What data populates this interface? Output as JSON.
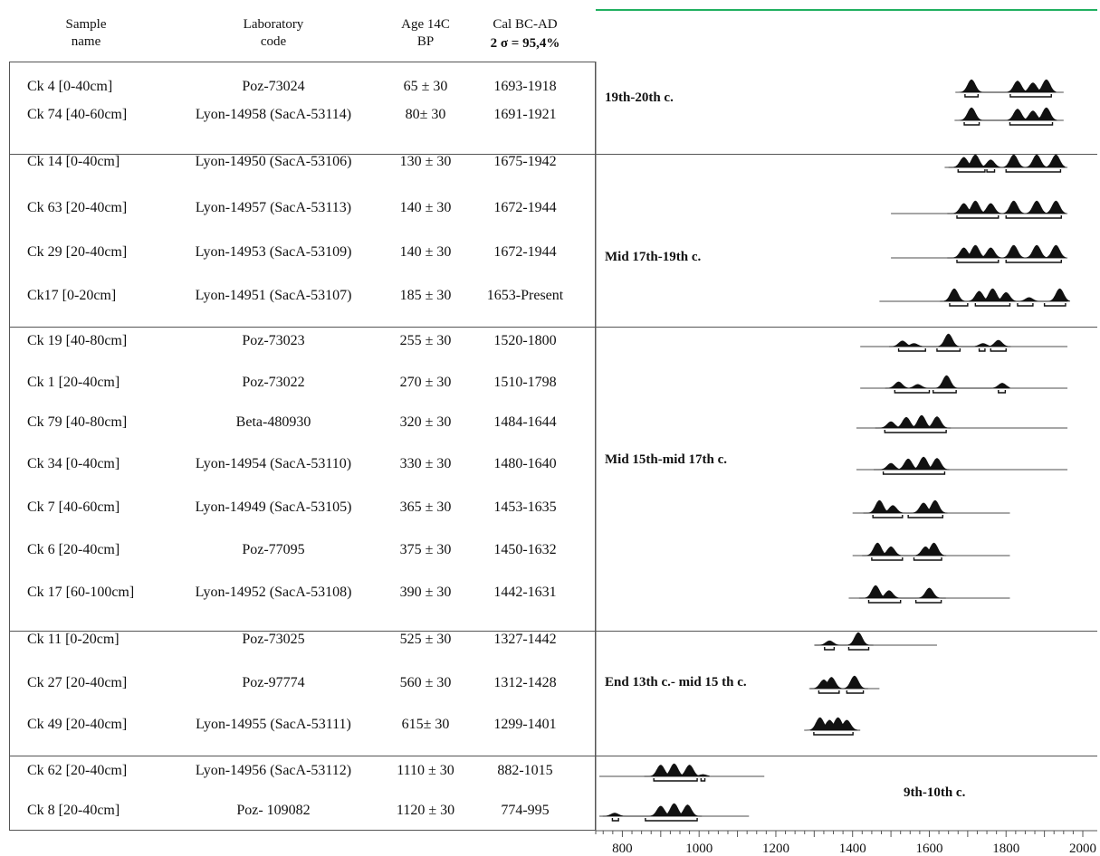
{
  "header": {
    "sample_name": "Sample\nname",
    "laboratory_code": "Laboratory\ncode",
    "age_14c": "Age 14C\nBP",
    "cal_bc_ad": "Cal BC-AD",
    "sigma": "2 σ = 95,4%"
  },
  "colors": {
    "border": "#555555",
    "curve": "#111111",
    "accent": "#20b060"
  },
  "chart_data": {
    "type": "table",
    "title": "",
    "xlabel": "",
    "ylabel": "",
    "xlim": [
      740,
      2000
    ],
    "x_ticks": [
      800,
      1000,
      1200,
      1400,
      1600,
      1800,
      2000
    ],
    "groups": [
      {
        "period": "19th-20th c.",
        "samples": [
          {
            "sample": "Ck 4 [0-40cm]",
            "lab": "Poz-73024",
            "age": "65 ± 30",
            "cal": "1693-1918",
            "range": [
              1680,
              1950
            ],
            "intervals": [
              [
                1693,
                1727
              ],
              [
                1811,
                1918
              ]
            ],
            "peaks": [
              [
                1710,
                1
              ],
              [
                1830,
                0.9
              ],
              [
                1870,
                0.75
              ],
              [
                1905,
                1
              ]
            ]
          },
          {
            "sample": "Ck 74 [40-60cm]",
            "lab": "Lyon-14958 (SacA-53114)",
            "age": "80± 30",
            "cal": "1691-1921",
            "range": [
              1680,
              1950
            ],
            "intervals": [
              [
                1691,
                1730
              ],
              [
                1810,
                1921
              ]
            ],
            "peaks": [
              [
                1710,
                1
              ],
              [
                1830,
                0.9
              ],
              [
                1870,
                0.75
              ],
              [
                1905,
                1
              ]
            ]
          }
        ]
      },
      {
        "period": "Mid 17th-19th c.",
        "samples": [
          {
            "sample": "Ck 14 [0-40cm]",
            "lab": "Lyon-14950 (SacA-53106)",
            "age": "130 ± 30",
            "cal": "1675-1942",
            "range": [
              1640,
              1960
            ],
            "intervals": [
              [
                1675,
                1745
              ],
              [
                1750,
                1770
              ],
              [
                1800,
                1942
              ]
            ],
            "peaks": [
              [
                1690,
                0.8
              ],
              [
                1720,
                1
              ],
              [
                1760,
                0.6
              ],
              [
                1820,
                1
              ],
              [
                1880,
                1
              ],
              [
                1930,
                1
              ]
            ]
          },
          {
            "sample": "Ck 63 [20-40cm]",
            "lab": "Lyon-14957 (SacA-53113)",
            "age": "140 ± 30",
            "cal": "1672-1944",
            "range": [
              1500,
              1960
            ],
            "intervals": [
              [
                1672,
                1780
              ],
              [
                1800,
                1944
              ]
            ],
            "peaks": [
              [
                1690,
                0.8
              ],
              [
                1720,
                1
              ],
              [
                1760,
                0.8
              ],
              [
                1820,
                1
              ],
              [
                1880,
                1
              ],
              [
                1930,
                1
              ]
            ]
          },
          {
            "sample": "Ck 29 [20-40cm]",
            "lab": "Lyon-14953 (SacA-53109)",
            "age": "140 ± 30",
            "cal": "1672-1944",
            "range": [
              1500,
              1960
            ],
            "intervals": [
              [
                1672,
                1780
              ],
              [
                1800,
                1944
              ]
            ],
            "peaks": [
              [
                1690,
                0.8
              ],
              [
                1720,
                1
              ],
              [
                1760,
                0.8
              ],
              [
                1820,
                1
              ],
              [
                1880,
                1
              ],
              [
                1930,
                1
              ]
            ]
          },
          {
            "sample": "Ck17 [0-20cm]",
            "lab": "Lyon-14951 (SacA-53107)",
            "age": "185 ± 30",
            "cal": "1653-Present",
            "range": [
              1470,
              1960
            ],
            "intervals": [
              [
                1653,
                1700
              ],
              [
                1720,
                1810
              ],
              [
                1830,
                1870
              ],
              [
                1900,
                1955
              ]
            ],
            "peaks": [
              [
                1665,
                1
              ],
              [
                1730,
                0.8
              ],
              [
                1765,
                1
              ],
              [
                1800,
                0.7
              ],
              [
                1860,
                0.3
              ],
              [
                1940,
                1
              ]
            ]
          }
        ]
      },
      {
        "period": "Mid 15th-mid 17th c.",
        "samples": [
          {
            "sample": "Ck 19 [40-80cm]",
            "lab": "Poz-73023",
            "age": "255 ± 30",
            "cal": "1520-1800",
            "range": [
              1420,
              1960
            ],
            "intervals": [
              [
                1520,
                1590
              ],
              [
                1620,
                1680
              ],
              [
                1730,
                1745
              ],
              [
                1760,
                1800
              ]
            ],
            "peaks": [
              [
                1530,
                0.45
              ],
              [
                1560,
                0.25
              ],
              [
                1650,
                1
              ],
              [
                1740,
                0.25
              ],
              [
                1780,
                0.5
              ]
            ]
          },
          {
            "sample": "Ck 1 [20-40cm]",
            "lab": "Poz-73022",
            "age": "270 ± 30",
            "cal": "1510-1798",
            "range": [
              1420,
              1960
            ],
            "intervals": [
              [
                1510,
                1600
              ],
              [
                1610,
                1670
              ],
              [
                1780,
                1798
              ]
            ],
            "peaks": [
              [
                1520,
                0.5
              ],
              [
                1570,
                0.3
              ],
              [
                1645,
                1
              ],
              [
                1790,
                0.4
              ]
            ]
          },
          {
            "sample": "Ck 79 [40-80cm]",
            "lab": "Beta-480930",
            "age": "320 ± 30",
            "cal": "1484-1644",
            "range": [
              1410,
              1960
            ],
            "intervals": [
              [
                1484,
                1644
              ]
            ],
            "peaks": [
              [
                1500,
                0.5
              ],
              [
                1540,
                0.85
              ],
              [
                1580,
                1
              ],
              [
                1620,
                0.9
              ]
            ]
          },
          {
            "sample": "Ck 34 [0-40cm]",
            "lab": "Lyon-14954 (SacA-53110)",
            "age": "330 ± 30",
            "cal": "1480-1640",
            "range": [
              1410,
              1960
            ],
            "intervals": [
              [
                1480,
                1640
              ]
            ],
            "peaks": [
              [
                1500,
                0.5
              ],
              [
                1545,
                0.85
              ],
              [
                1585,
                1
              ],
              [
                1620,
                0.9
              ]
            ]
          },
          {
            "sample": "Ck 7 [40-60cm]",
            "lab": "Lyon-14949 (SacA-53105)",
            "age": "365 ± 30",
            "cal": "1453-1635",
            "range": [
              1400,
              1810
            ],
            "intervals": [
              [
                1453,
                1530
              ],
              [
                1545,
                1635
              ]
            ],
            "peaks": [
              [
                1470,
                1
              ],
              [
                1505,
                0.6
              ],
              [
                1585,
                0.8
              ],
              [
                1615,
                1
              ]
            ]
          },
          {
            "sample": "Ck 6 [20-40cm]",
            "lab": "Poz-77095",
            "age": "375 ± 30",
            "cal": "1450-1632",
            "range": [
              1400,
              1810
            ],
            "intervals": [
              [
                1450,
                1530
              ],
              [
                1560,
                1632
              ]
            ],
            "peaks": [
              [
                1465,
                1
              ],
              [
                1500,
                0.7
              ],
              [
                1590,
                0.7
              ],
              [
                1612,
                1
              ]
            ]
          },
          {
            "sample": "Ck 17 [60-100cm]",
            "lab": "Lyon-14952 (SacA-53108)",
            "age": "390 ± 30",
            "cal": "1442-1631",
            "range": [
              1390,
              1810
            ],
            "intervals": [
              [
                1442,
                1525
              ],
              [
                1565,
                1631
              ]
            ],
            "peaks": [
              [
                1460,
                1
              ],
              [
                1495,
                0.6
              ],
              [
                1600,
                0.8
              ]
            ]
          }
        ]
      },
      {
        "period": "End 13th c.- mid 15 th c.",
        "samples": [
          {
            "sample": "Ck 11 [0-20cm]",
            "lab": "Poz-73025",
            "age": "525 ± 30",
            "cal": "1327-1442",
            "range": [
              1300,
              1620
            ],
            "intervals": [
              [
                1327,
                1352
              ],
              [
                1390,
                1442
              ]
            ],
            "peaks": [
              [
                1340,
                0.35
              ],
              [
                1415,
                1
              ]
            ]
          },
          {
            "sample": "Ck 27 [20-40cm]",
            "lab": "Poz-97774",
            "age": "560 ± 30",
            "cal": "1312-1428",
            "range": [
              1290,
              1470
            ],
            "intervals": [
              [
                1312,
                1365
              ],
              [
                1385,
                1428
              ]
            ],
            "peaks": [
              [
                1325,
                0.7
              ],
              [
                1345,
                0.9
              ],
              [
                1405,
                1
              ]
            ]
          },
          {
            "sample": "Ck 49 [20-40cm]",
            "lab": "Lyon-14955 (SacA-53111)",
            "age": "615± 30",
            "cal": "1299-1401",
            "range": [
              1290,
              1420
            ],
            "intervals": [
              [
                1299,
                1401
              ]
            ],
            "peaks": [
              [
                1315,
                1
              ],
              [
                1340,
                0.8
              ],
              [
                1362,
                1
              ],
              [
                1385,
                0.8
              ]
            ]
          }
        ]
      },
      {
        "period": "9th-10th c.",
        "samples": [
          {
            "sample": "Ck 62 [20-40cm]",
            "lab": "Lyon-14956 (SacA-53112)",
            "age": "1110 ± 30",
            "cal": "882-1015",
            "range": [
              740,
              1170
            ],
            "intervals": [
              [
                882,
                995
              ],
              [
                1005,
                1015
              ]
            ],
            "peaks": [
              [
                780,
                0.1
              ],
              [
                900,
                0.9
              ],
              [
                935,
                1
              ],
              [
                975,
                0.9
              ],
              [
                1010,
                0.15
              ]
            ]
          },
          {
            "sample": "Ck 8 [20-40cm]",
            "lab": "Poz- 109082",
            "age": "1120 ± 30",
            "cal": "774-995",
            "range": [
              740,
              1130
            ],
            "intervals": [
              [
                774,
                790
              ],
              [
                860,
                995
              ]
            ],
            "peaks": [
              [
                780,
                0.25
              ],
              [
                900,
                0.8
              ],
              [
                935,
                1
              ],
              [
                970,
                0.9
              ]
            ]
          }
        ]
      }
    ]
  }
}
